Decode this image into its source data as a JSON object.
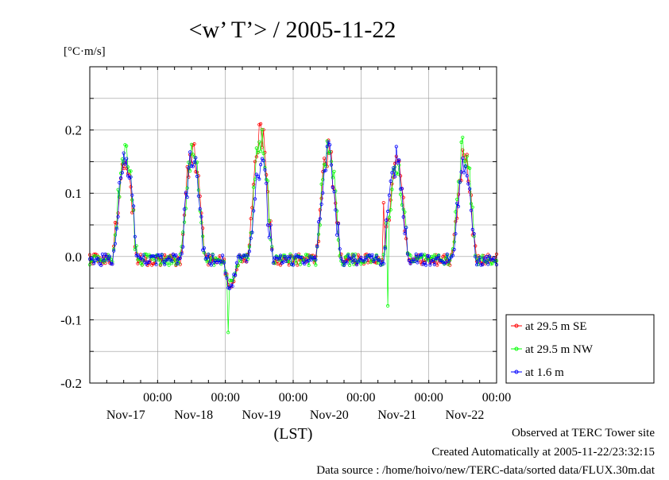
{
  "chart_data": {
    "type": "line",
    "title": "<w’ T’> / 2005-11-22",
    "ylabel": "[°C·m/s]",
    "xlabel": "(LST)",
    "ylim": [
      -0.2,
      0.3
    ],
    "xlim_days": [
      -1,
      5
    ],
    "y_ticks": [
      {
        "v": 0.2,
        "label": "0.2"
      },
      {
        "v": 0.1,
        "label": "0.1"
      },
      {
        "v": 0.0,
        "label": "0.0"
      },
      {
        "v": -0.1,
        "label": "-0.1"
      },
      {
        "v": -0.2,
        "label": "-0.2"
      }
    ],
    "x_ticks": [
      {
        "day": 0,
        "time": "00:00",
        "date": "Nov-17"
      },
      {
        "day": 1,
        "time": "00:00",
        "date": "Nov-18"
      },
      {
        "day": 2,
        "time": "00:00",
        "date": "Nov-19"
      },
      {
        "day": 3,
        "time": "00:00",
        "date": "Nov-20"
      },
      {
        "day": 4,
        "time": "00:00",
        "date": "Nov-21"
      },
      {
        "day": 5,
        "time": "00:00",
        "date": "Nov-22"
      }
    ],
    "grid": true,
    "legend_position": "outside-right-bottom",
    "series": [
      {
        "name": "at 29.5 m SE",
        "color": "#ff0000",
        "values": []
      },
      {
        "name": "at 29.5 m NW",
        "color": "#00ff00",
        "values": []
      },
      {
        "name": "at 1.6 m",
        "color": "#0000ff",
        "values": []
      }
    ]
  },
  "footer": {
    "line1": "Observed at TERC Tower site",
    "line2": "Created Automatically at 2005-11-22/23:32:15",
    "line3": "Data source : /home/hoivo/new/TERC-data/sorted  data/FLUX.30m.dat"
  }
}
